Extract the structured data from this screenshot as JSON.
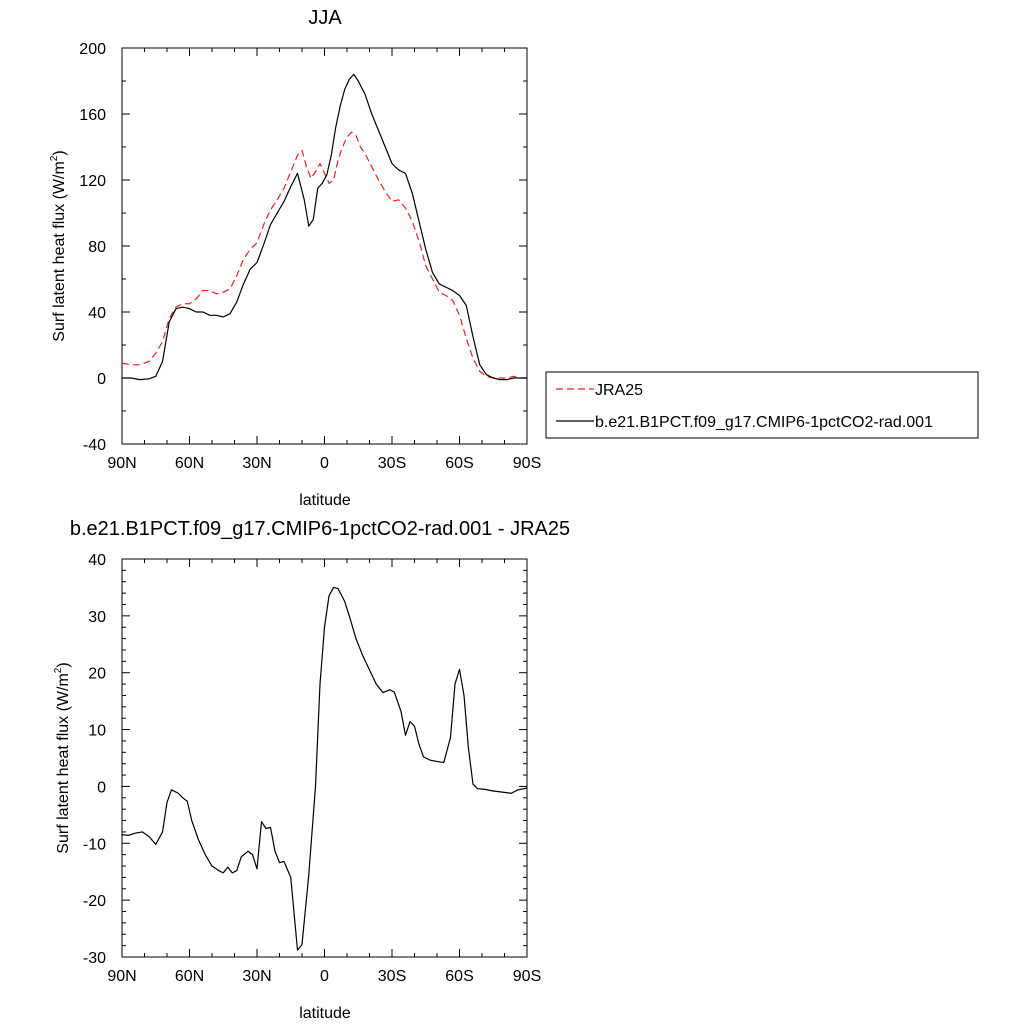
{
  "chart_data": [
    {
      "type": "line",
      "title": "JJA",
      "xlabel": "latitude",
      "ylabel_main": "Surf latent heat flux (W/m",
      "ylabel_sup": "2",
      "ylabel_close": ")",
      "xlim": [
        90,
        -90
      ],
      "ylim": [
        -40,
        200
      ],
      "x_ticks": [
        {
          "value": 90,
          "label": "90N"
        },
        {
          "value": 60,
          "label": "60N"
        },
        {
          "value": 30,
          "label": "30N"
        },
        {
          "value": 0,
          "label": "0"
        },
        {
          "value": -30,
          "label": "30S"
        },
        {
          "value": -60,
          "label": "60S"
        },
        {
          "value": -90,
          "label": "90S"
        }
      ],
      "y_ticks": [
        {
          "value": -40,
          "label": "-40"
        },
        {
          "value": 0,
          "label": "0"
        },
        {
          "value": 40,
          "label": "40"
        },
        {
          "value": 80,
          "label": "80"
        },
        {
          "value": 120,
          "label": "120"
        },
        {
          "value": 160,
          "label": "160"
        },
        {
          "value": 200,
          "label": "200"
        }
      ],
      "legend": {
        "placement": "right",
        "entries": [
          {
            "label": "JRA25",
            "color": "#e8231f",
            "dash": "dashed"
          },
          {
            "label": "b.e21.B1PCT.f09_g17.CMIP6-1pctCO2-rad.001",
            "color": "#000000",
            "dash": "solid"
          }
        ]
      },
      "series": [
        {
          "name": "JRA25",
          "color": "#e8231f",
          "dash": "dashed",
          "points": [
            [
              90,
              9
            ],
            [
              86,
              8
            ],
            [
              82,
              8
            ],
            [
              78,
              10
            ],
            [
              75,
              15
            ],
            [
              72,
              22
            ],
            [
              69,
              36
            ],
            [
              66,
              43
            ],
            [
              63,
              45
            ],
            [
              60,
              45
            ],
            [
              57,
              48
            ],
            [
              54,
              53
            ],
            [
              51,
              53
            ],
            [
              48,
              51
            ],
            [
              45,
              52
            ],
            [
              42,
              54
            ],
            [
              39,
              62
            ],
            [
              36,
              72
            ],
            [
              33,
              78
            ],
            [
              30,
              82
            ],
            [
              27,
              93
            ],
            [
              24,
              102
            ],
            [
              21,
              108
            ],
            [
              18,
              115
            ],
            [
              15,
              125
            ],
            [
              12,
              135
            ],
            [
              10,
              138
            ],
            [
              8,
              128
            ],
            [
              6,
              121
            ],
            [
              4,
              125
            ],
            [
              2,
              130
            ],
            [
              0,
              124
            ],
            [
              -2,
              118
            ],
            [
              -4,
              120
            ],
            [
              -6,
              132
            ],
            [
              -8,
              140
            ],
            [
              -10,
              146
            ],
            [
              -12,
              149
            ],
            [
              -14,
              147
            ],
            [
              -16,
              140
            ],
            [
              -18,
              136
            ],
            [
              -21,
              128
            ],
            [
              -24,
              120
            ],
            [
              -27,
              113
            ],
            [
              -30,
              107
            ],
            [
              -33,
              108
            ],
            [
              -36,
              103
            ],
            [
              -39,
              95
            ],
            [
              -42,
              83
            ],
            [
              -45,
              68
            ],
            [
              -48,
              60
            ],
            [
              -51,
              52
            ],
            [
              -54,
              50
            ],
            [
              -57,
              47
            ],
            [
              -60,
              38
            ],
            [
              -63,
              24
            ],
            [
              -66,
              12
            ],
            [
              -69,
              4
            ],
            [
              -72,
              1
            ],
            [
              -75,
              0
            ],
            [
              -78,
              0
            ],
            [
              -81,
              0
            ],
            [
              -84,
              1
            ],
            [
              -87,
              0
            ],
            [
              -90,
              0
            ]
          ]
        },
        {
          "name": "b.e21.B1PCT.f09_g17.CMIP6-1pctCO2-rad.001",
          "color": "#000000",
          "dash": "solid",
          "points": [
            [
              90,
              0
            ],
            [
              86,
              0
            ],
            [
              82,
              -1
            ],
            [
              78,
              -0.5
            ],
            [
              75,
              1
            ],
            [
              72,
              10
            ],
            [
              69,
              34
            ],
            [
              66,
              42
            ],
            [
              63,
              43
            ],
            [
              60,
              42
            ],
            [
              57,
              40
            ],
            [
              54,
              40
            ],
            [
              51,
              38
            ],
            [
              48,
              38
            ],
            [
              45,
              37
            ],
            [
              42,
              39
            ],
            [
              39,
              46
            ],
            [
              36,
              57
            ],
            [
              33,
              66
            ],
            [
              30,
              70
            ],
            [
              27,
              81
            ],
            [
              24,
              93
            ],
            [
              21,
              100
            ],
            [
              18,
              107
            ],
            [
              15,
              116
            ],
            [
              12,
              124
            ],
            [
              9,
              108
            ],
            [
              7,
              92
            ],
            [
              5,
              96
            ],
            [
              3,
              115
            ],
            [
              1,
              118
            ],
            [
              -1,
              123
            ],
            [
              -3,
              135
            ],
            [
              -5,
              152
            ],
            [
              -7,
              165
            ],
            [
              -9,
              175
            ],
            [
              -11,
              181
            ],
            [
              -13,
              184
            ],
            [
              -15,
              180
            ],
            [
              -18,
              172
            ],
            [
              -21,
              160
            ],
            [
              -24,
              150
            ],
            [
              -27,
              140
            ],
            [
              -30,
              130
            ],
            [
              -33,
              126
            ],
            [
              -36,
              124
            ],
            [
              -39,
              112
            ],
            [
              -42,
              95
            ],
            [
              -45,
              78
            ],
            [
              -48,
              64
            ],
            [
              -51,
              57
            ],
            [
              -54,
              55
            ],
            [
              -57,
              53
            ],
            [
              -60,
              50
            ],
            [
              -63,
              44
            ],
            [
              -66,
              25
            ],
            [
              -69,
              8
            ],
            [
              -72,
              2
            ],
            [
              -75,
              0
            ],
            [
              -78,
              -1
            ],
            [
              -81,
              -1
            ],
            [
              -84,
              0
            ],
            [
              -87,
              0
            ],
            [
              -90,
              0
            ]
          ]
        }
      ]
    },
    {
      "type": "line",
      "title": "b.e21.B1PCT.f09_g17.CMIP6-1pctCO2-rad.001 - JRA25",
      "xlabel": "latitude",
      "ylabel_main": "Surf latent heat flux (W/m",
      "ylabel_sup": "2",
      "ylabel_close": ")",
      "xlim": [
        90,
        -90
      ],
      "ylim": [
        -30,
        40
      ],
      "x_ticks": [
        {
          "value": 90,
          "label": "90N"
        },
        {
          "value": 60,
          "label": "60N"
        },
        {
          "value": 30,
          "label": "30N"
        },
        {
          "value": 0,
          "label": "0"
        },
        {
          "value": -30,
          "label": "30S"
        },
        {
          "value": -60,
          "label": "60S"
        },
        {
          "value": -90,
          "label": "90S"
        }
      ],
      "y_ticks": [
        {
          "value": -30,
          "label": "-30"
        },
        {
          "value": -20,
          "label": "-20"
        },
        {
          "value": -10,
          "label": "-10"
        },
        {
          "value": 0,
          "label": "0"
        },
        {
          "value": 10,
          "label": "10"
        },
        {
          "value": 20,
          "label": "20"
        },
        {
          "value": 30,
          "label": "30"
        },
        {
          "value": 40,
          "label": "40"
        }
      ],
      "series": [
        {
          "color": "#000000",
          "dash": "solid",
          "points": [
            [
              90,
              -8.5
            ],
            [
              87,
              -8.6
            ],
            [
              84,
              -8.2
            ],
            [
              81,
              -8
            ],
            [
              78,
              -8.8
            ],
            [
              75,
              -10.2
            ],
            [
              72,
              -8
            ],
            [
              70,
              -2.8
            ],
            [
              68,
              -0.6
            ],
            [
              65,
              -1.2
            ],
            [
              63,
              -2
            ],
            [
              61,
              -2.6
            ],
            [
              59,
              -6
            ],
            [
              56,
              -9.4
            ],
            [
              53,
              -12
            ],
            [
              50,
              -14
            ],
            [
              47,
              -14.8
            ],
            [
              45,
              -15.2
            ],
            [
              43,
              -14.2
            ],
            [
              41,
              -15.2
            ],
            [
              39,
              -14.8
            ],
            [
              37,
              -12.4
            ],
            [
              34,
              -11.4
            ],
            [
              32,
              -12
            ],
            [
              30,
              -14.5
            ],
            [
              28,
              -6.2
            ],
            [
              26,
              -7.4
            ],
            [
              24,
              -7.2
            ],
            [
              22,
              -11.4
            ],
            [
              20,
              -13.4
            ],
            [
              18,
              -13.2
            ],
            [
              15,
              -16
            ],
            [
              12,
              -28.8
            ],
            [
              10,
              -27.8
            ],
            [
              7,
              -15.6
            ],
            [
              4,
              0
            ],
            [
              2,
              18
            ],
            [
              0,
              28
            ],
            [
              -2,
              33.5
            ],
            [
              -4,
              35
            ],
            [
              -6,
              34.8
            ],
            [
              -9,
              32.5
            ],
            [
              -11,
              30
            ],
            [
              -14,
              26
            ],
            [
              -17,
              23
            ],
            [
              -20,
              20.5
            ],
            [
              -23,
              18
            ],
            [
              -26,
              16.5
            ],
            [
              -29,
              17
            ],
            [
              -31,
              16.6
            ],
            [
              -34,
              13.2
            ],
            [
              -36,
              9
            ],
            [
              -38,
              11.4
            ],
            [
              -40,
              10.6
            ],
            [
              -42,
              7.4
            ],
            [
              -44,
              5.2
            ],
            [
              -47,
              4.6
            ],
            [
              -50,
              4.4
            ],
            [
              -53,
              4.2
            ],
            [
              -56,
              8.6
            ],
            [
              -58,
              18
            ],
            [
              -60,
              20.6
            ],
            [
              -62,
              16
            ],
            [
              -64,
              6.6
            ],
            [
              -66,
              0.4
            ],
            [
              -68,
              -0.4
            ],
            [
              -71,
              -0.5
            ],
            [
              -75,
              -0.8
            ],
            [
              -79,
              -1
            ],
            [
              -83,
              -1.2
            ],
            [
              -86,
              -0.6
            ],
            [
              -90,
              -0.3
            ]
          ]
        }
      ]
    }
  ]
}
